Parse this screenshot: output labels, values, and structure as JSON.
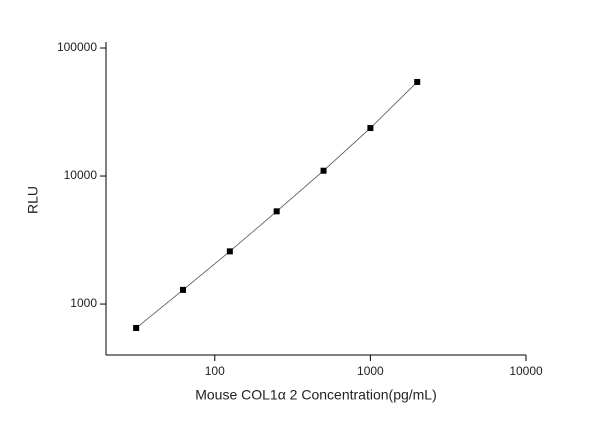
{
  "chart_data": {
    "type": "scatter",
    "x_label": "Mouse COL1α 2 Concentration(pg/mL)",
    "y_label": "RLU",
    "x_scale": "log",
    "y_scale": "log",
    "xlim": [
      20,
      10000
    ],
    "xticks": [
      100,
      1000,
      10000
    ],
    "ylim": [
      400,
      100000
    ],
    "yticks": [
      1000,
      10000,
      100000
    ],
    "color": "#000000",
    "line_color": "#555555",
    "x": [
      31.25,
      62.5,
      125,
      250,
      500,
      1000,
      2000
    ],
    "values": [
      650,
      1290,
      2580,
      5300,
      11000,
      23700,
      54300
    ]
  }
}
